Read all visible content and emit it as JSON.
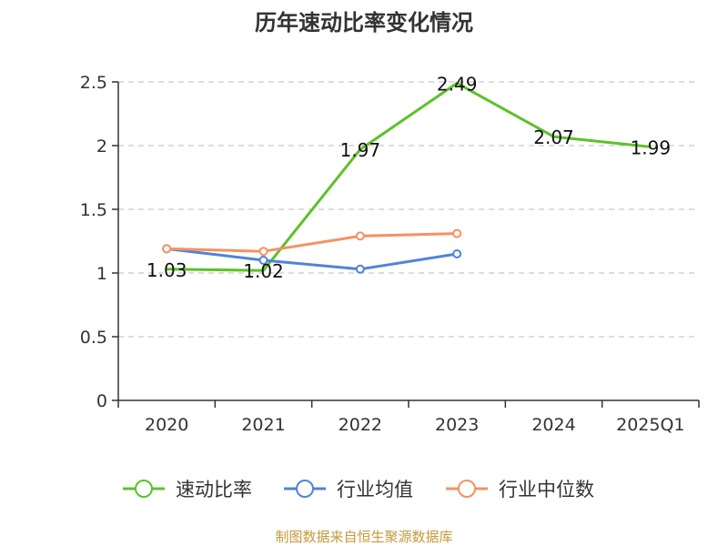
{
  "chart_data": {
    "type": "line",
    "title": "历年速动比率变化情况",
    "categories": [
      "2020",
      "2021",
      "2022",
      "2023",
      "2024",
      "2025Q1"
    ],
    "ylim": [
      0,
      2.5
    ],
    "yticks": [
      "0",
      "0.5",
      "1",
      "1.5",
      "2",
      "2.5"
    ],
    "ytick_values": [
      0,
      0.5,
      1,
      1.5,
      2,
      2.5
    ],
    "grid": true,
    "legend_position": "bottom",
    "series": [
      {
        "name": "速动比率",
        "color": "#5cc228",
        "values": [
          1.03,
          1.02,
          1.97,
          2.49,
          2.07,
          1.99
        ],
        "labels": [
          "1.03",
          "1.02",
          "1.97",
          "2.49",
          "2.07",
          "1.99"
        ],
        "show_markers": false
      },
      {
        "name": "行业均值",
        "color": "#5083d8",
        "values": [
          1.19,
          1.1,
          1.03,
          1.15,
          null,
          null
        ],
        "show_markers": true
      },
      {
        "name": "行业中位数",
        "color": "#f69160",
        "values": [
          1.19,
          1.17,
          1.29,
          1.31,
          null,
          null
        ],
        "show_markers": true
      }
    ]
  },
  "footer": {
    "source": "制图数据来自恒生聚源数据库",
    "source_color": "#c59a3a"
  }
}
